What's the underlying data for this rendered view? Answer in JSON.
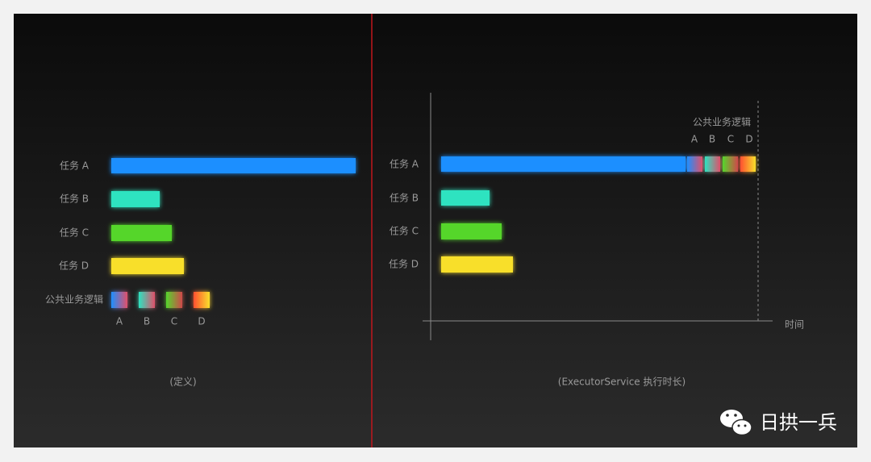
{
  "left": {
    "tasks": [
      "任务 A",
      "任务 B",
      "任务 C",
      "任务 D"
    ],
    "common_label": "公共业务逻辑",
    "parts": [
      "A",
      "B",
      "C",
      "D"
    ],
    "caption": "(定义)"
  },
  "right": {
    "tasks": [
      "任务 A",
      "任务 B",
      "任务 C",
      "任务 D"
    ],
    "common_label": "公共业务逻辑",
    "parts": [
      "A",
      "B",
      "C",
      "D"
    ],
    "axis_label": "时间",
    "caption": "(ExecutorService 执行时长)"
  },
  "watermark": "日拱一兵"
}
